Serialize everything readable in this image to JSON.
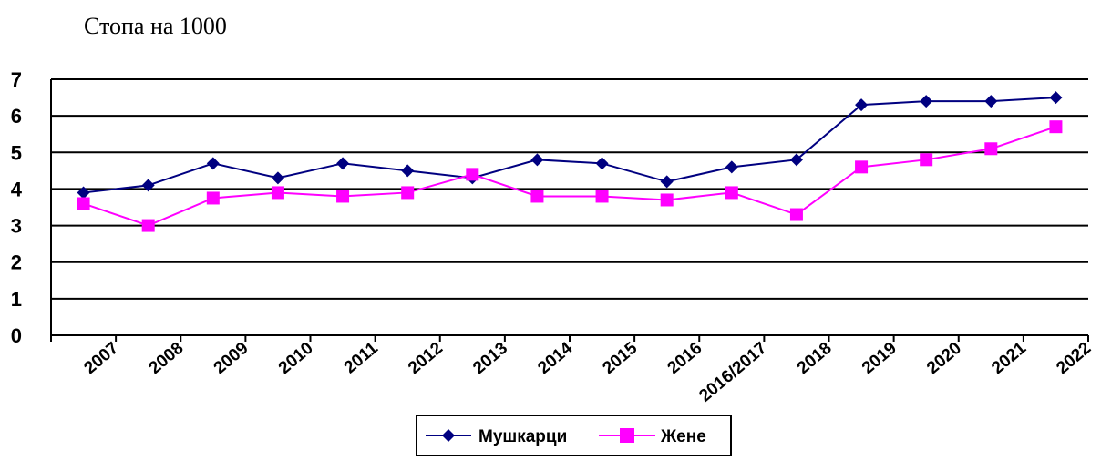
{
  "chart_data": {
    "type": "line",
    "ylabel": "Стопа на 1000",
    "categories": [
      "2007",
      "2008",
      "2009",
      "2010",
      "2011",
      "2012",
      "2013",
      "2014",
      "2015",
      "2016",
      "2016/2017",
      "2018",
      "2019",
      "2020",
      "2021",
      "2022"
    ],
    "series": [
      {
        "name": "Мушкарци",
        "color": "#000080",
        "marker": "diamond",
        "values": [
          3.9,
          4.1,
          4.7,
          4.3,
          4.7,
          4.5,
          4.3,
          4.8,
          4.7,
          4.2,
          4.6,
          4.8,
          6.3,
          6.4,
          6.4,
          6.5
        ]
      },
      {
        "name": "Жене",
        "color": "#FF00FF",
        "marker": "square",
        "values": [
          3.6,
          3.0,
          3.75,
          3.9,
          3.8,
          3.9,
          4.4,
          3.8,
          3.8,
          3.7,
          3.9,
          3.3,
          4.6,
          4.8,
          5.1,
          5.7
        ]
      }
    ],
    "yticks": [
      "0",
      "1",
      "2",
      "3",
      "4",
      "5",
      "6",
      "7"
    ],
    "ylim": [
      0,
      7
    ],
    "grid": true,
    "legend": "bottom-center"
  }
}
